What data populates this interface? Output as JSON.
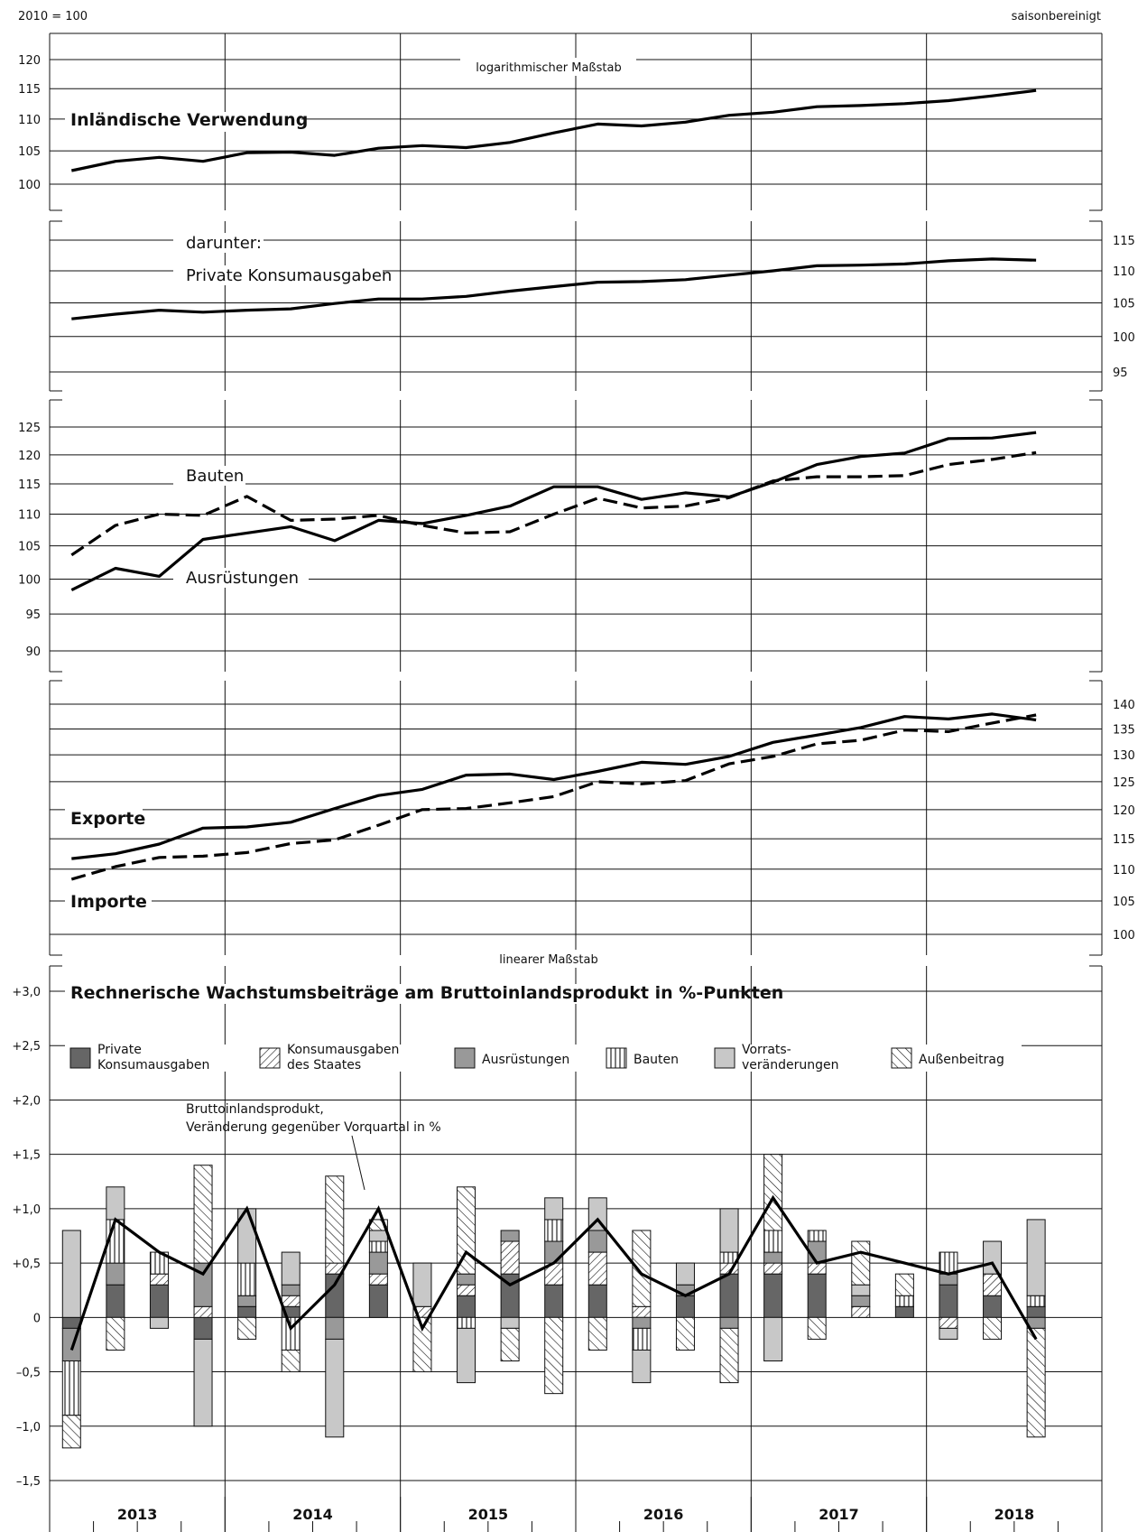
{
  "header": {
    "index_base": "2010 = 100",
    "adjustment": "saisonbereinigt"
  },
  "scale_labels": {
    "log": "logarithmischer Maßstab",
    "linear": "linearer Maßstab"
  },
  "quarters": [
    "2013 Q1",
    "2013 Q2",
    "2013 Q3",
    "2013 Q4",
    "2014 Q1",
    "2014 Q2",
    "2014 Q3",
    "2014 Q4",
    "2015 Q1",
    "2015 Q2",
    "2015 Q3",
    "2015 Q4",
    "2016 Q1",
    "2016 Q2",
    "2016 Q3",
    "2016 Q4",
    "2017 Q1",
    "2017 Q2",
    "2017 Q3",
    "2017 Q4",
    "2018 Q1",
    "2018 Q2",
    "2018 Q3"
  ],
  "years": [
    "2013",
    "2014",
    "2015",
    "2016",
    "2017",
    "2018"
  ],
  "chart_data": [
    {
      "type": "line",
      "scale": "log",
      "y_ticks": [
        "120",
        "115",
        "110",
        "105",
        "100"
      ],
      "ylim": [
        98,
        124
      ],
      "series": [
        {
          "name": "Inländische Verwendung",
          "style": "solid",
          "values": [
            102.0,
            103.4,
            104.0,
            103.4,
            104.7,
            104.8,
            104.3,
            105.4,
            105.8,
            105.5,
            106.3,
            107.8,
            109.2,
            108.9,
            109.5,
            110.6,
            111.1,
            112.0,
            112.2,
            112.5,
            113.0,
            113.8,
            114.7
          ]
        }
      ]
    },
    {
      "type": "line",
      "scale": "log",
      "intro": "darunter:",
      "y_ticks": [
        "115",
        "110",
        "105",
        "100",
        "95"
      ],
      "ylim": [
        92,
        118
      ],
      "series": [
        {
          "name": "Private Konsumausgaben",
          "style": "solid",
          "values": [
            102.6,
            103.3,
            103.9,
            103.6,
            103.9,
            104.1,
            104.9,
            105.6,
            105.6,
            106.0,
            106.8,
            107.5,
            108.2,
            108.3,
            108.6,
            109.3,
            110.0,
            110.8,
            110.9,
            111.1,
            111.6,
            111.9,
            111.7
          ]
        }
      ]
    },
    {
      "type": "line",
      "scale": "log",
      "y_ticks": [
        "125",
        "120",
        "115",
        "110",
        "105",
        "100",
        "95",
        "90"
      ],
      "ylim": [
        87.5,
        128.5
      ],
      "series": [
        {
          "name": "Bauten",
          "style": "dashed",
          "values": [
            103.6,
            108.2,
            110.0,
            109.8,
            112.9,
            109.0,
            109.2,
            109.8,
            108.2,
            107.0,
            107.2,
            110.0,
            112.6,
            111.0,
            111.3,
            112.7,
            115.5,
            116.2,
            116.2,
            116.4,
            118.3,
            119.2,
            120.4
          ]
        },
        {
          "name": "Ausrüstungen",
          "style": "solid",
          "values": [
            98.4,
            101.6,
            100.4,
            106.0,
            107.0,
            108.0,
            105.8,
            109.0,
            108.5,
            109.8,
            111.3,
            114.5,
            114.5,
            112.4,
            113.5,
            112.8,
            115.3,
            118.3,
            119.7,
            120.3,
            122.9,
            123.0,
            124.0
          ]
        }
      ]
    },
    {
      "type": "line",
      "scale": "log",
      "y_ticks": [
        "140",
        "135",
        "130",
        "125",
        "120",
        "115",
        "110",
        "105",
        "100"
      ],
      "ylim": [
        97,
        144
      ],
      "series": [
        {
          "name": "Exporte",
          "style": "solid",
          "values": [
            111.7,
            112.5,
            114.1,
            116.8,
            117.0,
            117.8,
            120.2,
            122.5,
            123.6,
            126.2,
            126.4,
            125.4,
            126.9,
            128.6,
            128.2,
            129.7,
            132.4,
            133.8,
            135.3,
            137.5,
            137.0,
            138.0,
            136.8
          ]
        },
        {
          "name": "Importe",
          "style": "dashed",
          "values": [
            108.4,
            110.4,
            111.9,
            112.1,
            112.7,
            114.2,
            114.8,
            117.3,
            120.0,
            120.2,
            121.2,
            122.3,
            125.0,
            124.6,
            125.2,
            128.3,
            129.7,
            132.1,
            132.8,
            134.8,
            134.5,
            136.2,
            137.8
          ]
        }
      ]
    },
    {
      "type": "bar",
      "stacked": true,
      "title": "Rechnerische Wachstumsbeiträge am Bruttoinlandsprodukt in %-Punkten",
      "y_ticks": [
        "+3,0",
        "+2,5",
        "+2,0",
        "+1,5",
        "+1,0",
        "+0,5",
        "0",
        "–0,5",
        "–1,0",
        "–1,5"
      ],
      "ylim": [
        -1.9,
        3.3
      ],
      "components": [
        {
          "key": "pk",
          "label_lines": [
            "Private",
            "Konsumausgaben"
          ],
          "pattern": "dark"
        },
        {
          "key": "st",
          "label_lines": [
            "Konsumausgaben",
            "des Staates"
          ],
          "pattern": "diagonal"
        },
        {
          "key": "au",
          "label_lines": [
            "Ausrüstungen"
          ],
          "pattern": "mid"
        },
        {
          "key": "ba",
          "label_lines": [
            "Bauten"
          ],
          "pattern": "vertical"
        },
        {
          "key": "vo",
          "label_lines": [
            "Vorrats-",
            "veränderungen"
          ],
          "pattern": "light"
        },
        {
          "key": "ab",
          "label_lines": [
            "Außenbeitrag"
          ],
          "pattern": "backslash"
        }
      ],
      "contributions": [
        {
          "pk": -0.1,
          "st": 0.0,
          "au": -0.3,
          "ba": -0.5,
          "vo": 0.8,
          "ab": -0.3
        },
        {
          "pk": 0.3,
          "st": 0.0,
          "au": 0.2,
          "ba": 0.4,
          "vo": 0.3,
          "ab": -0.3
        },
        {
          "pk": 0.3,
          "st": 0.1,
          "au": 0.0,
          "ba": 0.2,
          "vo": -0.1,
          "ab": 0.0
        },
        {
          "pk": -0.2,
          "st": 0.1,
          "au": 0.4,
          "ba": 0.0,
          "vo": -0.8,
          "ab": 0.9
        },
        {
          "pk": 0.1,
          "st": 0.0,
          "au": 0.1,
          "ba": 0.3,
          "vo": 0.5,
          "ab": -0.2
        },
        {
          "pk": 0.1,
          "st": 0.1,
          "au": 0.1,
          "ba": -0.3,
          "vo": 0.3,
          "ab": -0.2
        },
        {
          "pk": 0.4,
          "st": 0.1,
          "au": -0.2,
          "ba": 0.0,
          "vo": -0.9,
          "ab": 0.8
        },
        {
          "pk": 0.3,
          "st": 0.1,
          "au": 0.2,
          "ba": 0.1,
          "vo": 0.1,
          "ab": 0.1
        },
        {
          "pk": 0.0,
          "st": 0.1,
          "au": 0.0,
          "ba": 0.0,
          "vo": 0.4,
          "ab": -0.5
        },
        {
          "pk": 0.2,
          "st": 0.1,
          "au": 0.1,
          "ba": -0.1,
          "vo": -0.5,
          "ab": 0.8
        },
        {
          "pk": 0.4,
          "st": 0.3,
          "au": 0.1,
          "ba": 0.0,
          "vo": -0.1,
          "ab": -0.3
        },
        {
          "pk": 0.3,
          "st": 0.2,
          "au": 0.2,
          "ba": 0.2,
          "vo": 0.2,
          "ab": -0.7
        },
        {
          "pk": 0.3,
          "st": 0.3,
          "au": 0.2,
          "ba": 0.0,
          "vo": 0.3,
          "ab": -0.3
        },
        {
          "pk": 0.0,
          "st": 0.1,
          "au": -0.1,
          "ba": -0.2,
          "vo": -0.3,
          "ab": 0.7
        },
        {
          "pk": 0.2,
          "st": 0.0,
          "au": 0.1,
          "ba": 0.0,
          "vo": 0.2,
          "ab": -0.3
        },
        {
          "pk": 0.4,
          "st": 0.1,
          "au": -0.1,
          "ba": 0.1,
          "vo": 0.4,
          "ab": -0.5
        },
        {
          "pk": 0.4,
          "st": 0.1,
          "au": 0.1,
          "ba": 0.2,
          "vo": -0.4,
          "ab": 0.7
        },
        {
          "pk": 0.4,
          "st": 0.1,
          "au": 0.2,
          "ba": 0.1,
          "vo": 0.0,
          "ab": -0.2
        },
        {
          "pk": 0.0,
          "st": 0.1,
          "au": 0.1,
          "ba": 0.0,
          "vo": 0.1,
          "ab": 0.4
        },
        {
          "pk": 0.1,
          "st": 0.0,
          "au": 0.0,
          "ba": 0.1,
          "vo": 0.0,
          "ab": 0.2
        },
        {
          "pk": 0.3,
          "st": -0.1,
          "au": 0.1,
          "ba": 0.2,
          "vo": -0.1,
          "ab": 0.0
        },
        {
          "pk": 0.2,
          "st": 0.2,
          "au": 0.0,
          "ba": 0.0,
          "vo": 0.3,
          "ab": -0.2
        },
        {
          "pk": 0.1,
          "st": 0.0,
          "au": -0.1,
          "ba": 0.1,
          "vo": 0.7,
          "ab": -1.0
        }
      ],
      "line_label_lines": [
        "Bruttoinlandsprodukt,",
        "Veränderung gegenüber Vorquartal in %"
      ],
      "gdp": [
        -0.3,
        0.9,
        0.6,
        0.4,
        1.0,
        -0.1,
        0.3,
        1.0,
        -0.1,
        0.6,
        0.3,
        0.5,
        0.9,
        0.4,
        0.2,
        0.4,
        1.1,
        0.5,
        0.6,
        0.5,
        0.4,
        0.5,
        -0.2
      ]
    }
  ]
}
